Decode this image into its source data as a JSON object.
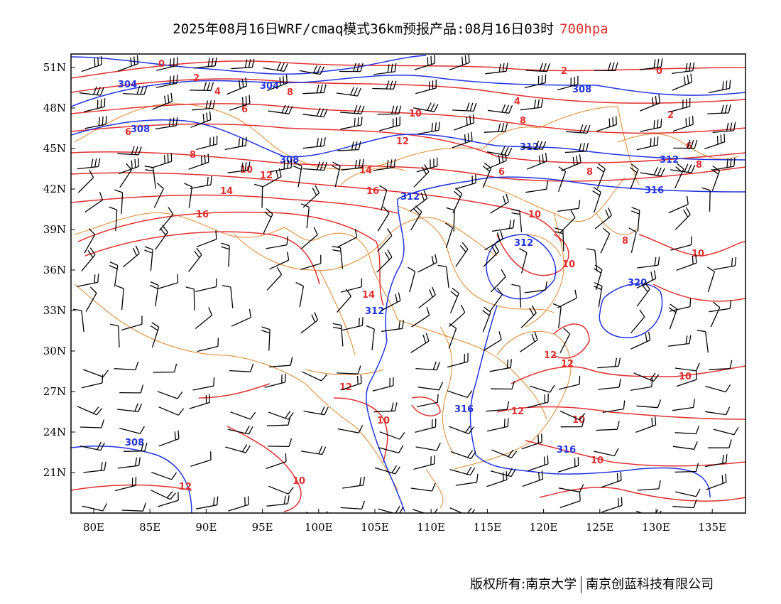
{
  "title": {
    "text": "2025年08月16日WRF/cmaq模式36km预报产品:08月16日03时",
    "level": "700hpa"
  },
  "footer": {
    "left": "版权所有:南京大学",
    "right": "南京创蓝科技有限公司"
  },
  "axes": {
    "lat_labels": [
      "51N",
      "48N",
      "45N",
      "42N",
      "39N",
      "36N",
      "33N",
      "30N",
      "27N",
      "24N",
      "21N"
    ],
    "lon_labels": [
      "80E",
      "85E",
      "90E",
      "95E",
      "100E",
      "105E",
      "110E",
      "115E",
      "120E",
      "125E",
      "130E",
      "135E"
    ]
  },
  "colors": {
    "height_contour": "#2233dd",
    "temperature_contour": "#e03030",
    "border": "#dd8833",
    "wind_barb": "#000000"
  },
  "height_labels": [
    "304",
    "304",
    "308",
    "308",
    "308",
    "312",
    "312",
    "312",
    "312",
    "316",
    "320",
    "312",
    "316",
    "316",
    "308"
  ],
  "temp_labels": [
    "0",
    "2",
    "4",
    "6",
    "8",
    "10",
    "12",
    "14",
    "16",
    "12",
    "10",
    "8",
    "6",
    "4",
    "2",
    "0",
    "2",
    "6",
    "8",
    "8",
    "10",
    "10",
    "12",
    "12",
    "10",
    "10",
    "14",
    "12",
    "10",
    "12",
    "10",
    "10",
    "8",
    "6",
    "8",
    "10",
    "12",
    "14",
    "16"
  ]
}
